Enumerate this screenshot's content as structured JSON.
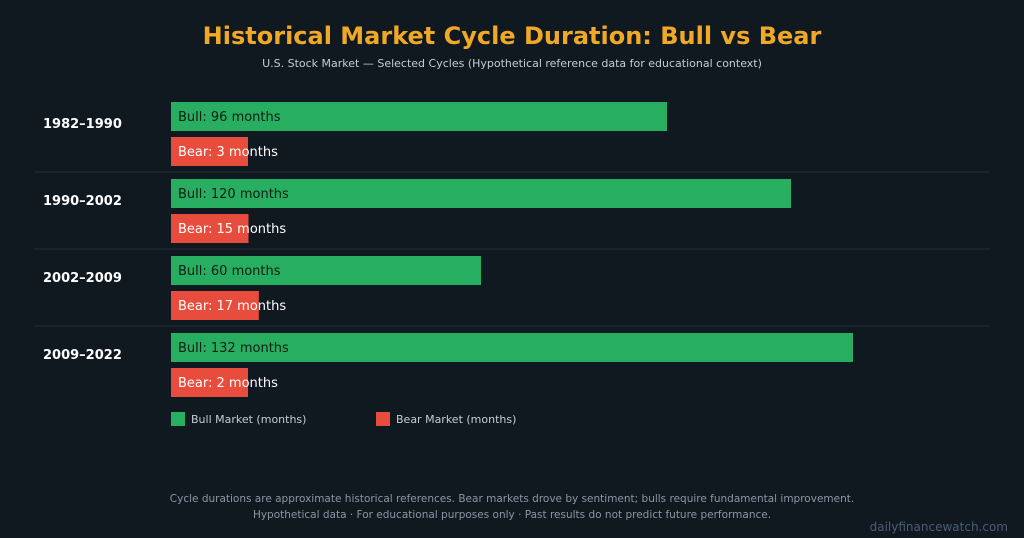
{
  "chart_data": {
    "type": "bar",
    "orientation": "horizontal",
    "title": "Historical Market Cycle Duration: Bull vs Bear",
    "subtitle": "U.S. Stock Market — Selected Cycles (Hypothetical reference data for educational context)",
    "categories": [
      "1982–1990",
      "1990–2002",
      "2002–2009",
      "2009–2022"
    ],
    "series": [
      {
        "name": "Bull Market (months)",
        "label_prefix": "Bull",
        "values": [
          96,
          120,
          60,
          132
        ],
        "labels": [
          "Bull: 96 months",
          "Bull: 120 months",
          "Bull: 60 months",
          "Bull: 132 months"
        ],
        "color": "#27AE60",
        "label_color": "#0e1e14"
      },
      {
        "name": "Bear Market (months)",
        "label_prefix": "Bear",
        "values": [
          3,
          15,
          17,
          2
        ],
        "labels": [
          "Bear: 3 months",
          "Bear: 15 months",
          "Bear: 17 months",
          "Bear: 2 months"
        ],
        "color": "#E74C3C",
        "label_color": "#ffffff"
      }
    ],
    "xlim": [
      0,
      132
    ],
    "grid": false,
    "legend_position": "bottom-left"
  },
  "footnote_1": "Cycle durations are approximate historical references. Bear markets drove by sentiment; bulls require fundamental improvement.",
  "footnote_2": "Hypothetical data · For educational purposes only · Past results do not predict future performance.",
  "watermark": "dailyfinancewatch.com"
}
